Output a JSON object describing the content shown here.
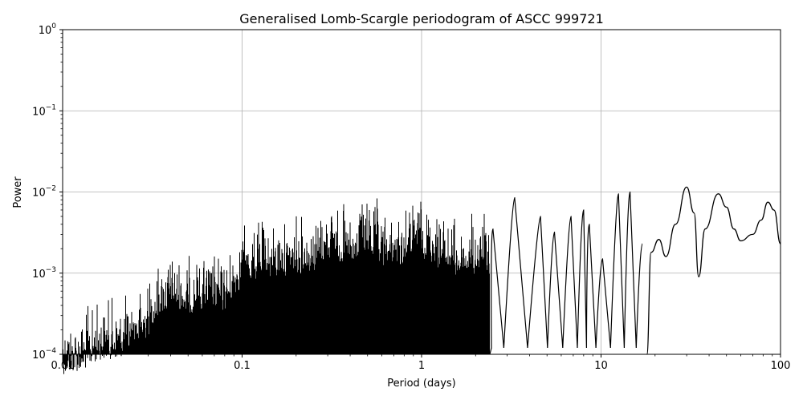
{
  "chart_data": {
    "type": "line",
    "title": "Generalised Lomb-Scargle periodogram of ASCC 999721",
    "xlabel": "Period (days)",
    "ylabel": "Power",
    "x_scale": "log",
    "y_scale": "log",
    "xlim": [
      0.01,
      100
    ],
    "ylim": [
      0.0001,
      1
    ],
    "grid": true,
    "line_color": "#000000",
    "x_ticks": [
      {
        "value": 0.01,
        "label": "0.01"
      },
      {
        "value": 0.1,
        "label": "0.1"
      },
      {
        "value": 1,
        "label": "1"
      },
      {
        "value": 10,
        "label": "10"
      },
      {
        "value": 100,
        "label": "100"
      }
    ],
    "y_ticks": [
      {
        "value": 0.0001,
        "base": "10",
        "exp": "−4"
      },
      {
        "value": 0.001,
        "base": "10",
        "exp": "−3"
      },
      {
        "value": 0.01,
        "base": "10",
        "exp": "−2"
      },
      {
        "value": 0.1,
        "base": "10",
        "exp": "−1"
      },
      {
        "value": 1,
        "base": "10",
        "exp": "0"
      }
    ],
    "envelope": [
      {
        "period": 0.01,
        "power": 0.00045
      },
      {
        "period": 0.013,
        "power": 0.0005
      },
      {
        "period": 0.016,
        "power": 0.00068
      },
      {
        "period": 0.02,
        "power": 0.0007
      },
      {
        "period": 0.025,
        "power": 0.00085
      },
      {
        "period": 0.03,
        "power": 0.0013
      },
      {
        "period": 0.035,
        "power": 0.0022
      },
      {
        "period": 0.04,
        "power": 0.0028
      },
      {
        "period": 0.05,
        "power": 0.0022
      },
      {
        "period": 0.065,
        "power": 0.0026
      },
      {
        "period": 0.08,
        "power": 0.0024
      },
      {
        "period": 0.1,
        "power": 0.0055
      },
      {
        "period": 0.13,
        "power": 0.006
      },
      {
        "period": 0.16,
        "power": 0.0065
      },
      {
        "period": 0.2,
        "power": 0.0075
      },
      {
        "period": 0.25,
        "power": 0.008
      },
      {
        "period": 0.32,
        "power": 0.012
      },
      {
        "period": 0.4,
        "power": 0.0075
      },
      {
        "period": 0.5,
        "power": 0.013
      },
      {
        "period": 0.6,
        "power": 0.0085
      },
      {
        "period": 0.75,
        "power": 0.0085
      },
      {
        "period": 0.95,
        "power": 0.013
      },
      {
        "period": 1.2,
        "power": 0.0095
      },
      {
        "period": 1.6,
        "power": 0.0065
      },
      {
        "period": 2.2,
        "power": 0.007
      }
    ],
    "peaks": [
      {
        "period": 2.5,
        "power": 0.0035
      },
      {
        "period": 3.3,
        "power": 0.0085
      },
      {
        "period": 4.6,
        "power": 0.005
      },
      {
        "period": 5.5,
        "power": 0.0032
      },
      {
        "period": 6.8,
        "power": 0.005
      },
      {
        "period": 8.0,
        "power": 0.006
      },
      {
        "period": 8.6,
        "power": 0.004
      },
      {
        "period": 10.2,
        "power": 0.0015
      },
      {
        "period": 12.5,
        "power": 0.0095
      },
      {
        "period": 14.5,
        "power": 0.01
      },
      {
        "period": 17.0,
        "power": 0.0023
      }
    ],
    "tail": [
      {
        "period": 18.0,
        "power": 0.0001
      },
      {
        "period": 19.0,
        "power": 0.0018
      },
      {
        "period": 21.0,
        "power": 0.0026
      },
      {
        "period": 23.0,
        "power": 0.0016
      },
      {
        "period": 26.0,
        "power": 0.004
      },
      {
        "period": 30.0,
        "power": 0.0115
      },
      {
        "period": 33.0,
        "power": 0.0055
      },
      {
        "period": 35.0,
        "power": 0.0009
      },
      {
        "period": 38.0,
        "power": 0.0035
      },
      {
        "period": 45.0,
        "power": 0.0095
      },
      {
        "period": 50.0,
        "power": 0.0065
      },
      {
        "period": 55.0,
        "power": 0.0035
      },
      {
        "period": 60.0,
        "power": 0.0025
      },
      {
        "period": 70.0,
        "power": 0.003
      },
      {
        "period": 78.0,
        "power": 0.0045
      },
      {
        "period": 85.0,
        "power": 0.0075
      },
      {
        "period": 92.0,
        "power": 0.006
      },
      {
        "period": 100.0,
        "power": 0.0023
      }
    ]
  }
}
